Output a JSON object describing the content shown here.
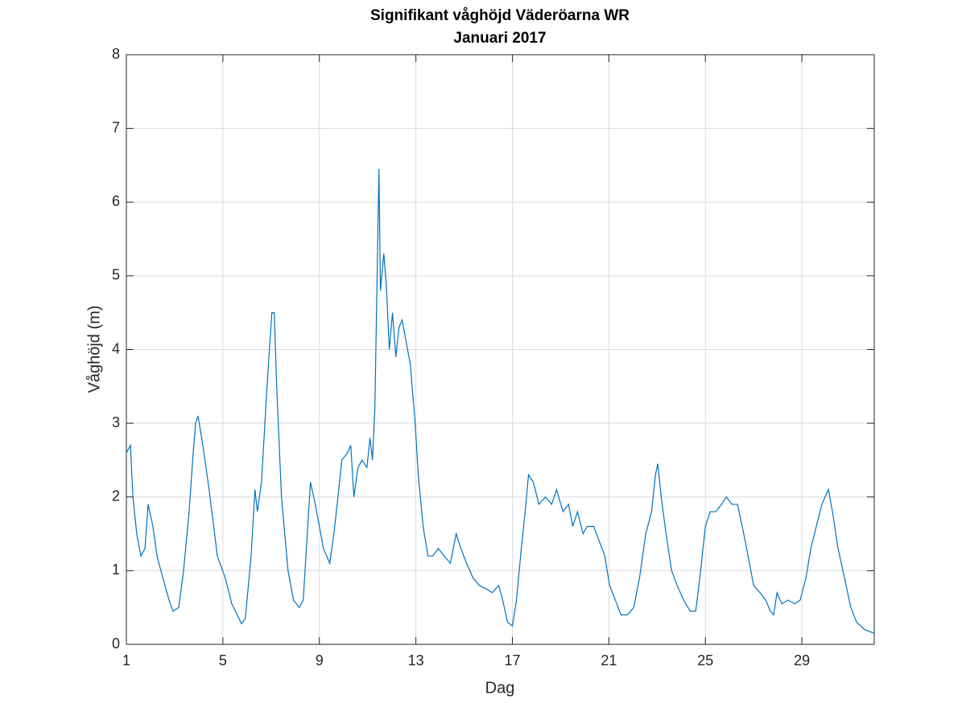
{
  "chart_data": {
    "type": "line",
    "title": "Signifikant våghöjd Väderöarna WR",
    "subtitle": "Januari 2017",
    "x_label": "Dag",
    "y_label": "Våghöjd (m)",
    "xlim": [
      1,
      32
    ],
    "ylim": [
      0,
      8
    ],
    "xticks": [
      1,
      5,
      9,
      13,
      17,
      21,
      25,
      29
    ],
    "yticks": [
      0,
      1,
      2,
      3,
      4,
      5,
      6,
      7,
      8
    ],
    "grid": true,
    "x": [
      1.0,
      1.17,
      1.27,
      1.43,
      1.6,
      1.77,
      1.9,
      2.1,
      2.27,
      2.43,
      2.77,
      2.93,
      3.17,
      3.37,
      3.6,
      3.77,
      3.87,
      3.97,
      4.17,
      4.43,
      4.77,
      5.1,
      5.37,
      5.77,
      5.93,
      6.17,
      6.33,
      6.43,
      6.6,
      6.83,
      7.03,
      7.13,
      7.23,
      7.43,
      7.7,
      7.93,
      8.17,
      8.33,
      8.5,
      8.63,
      8.83,
      9.0,
      9.17,
      9.43,
      9.6,
      9.77,
      9.93,
      10.17,
      10.3,
      10.43,
      10.6,
      10.77,
      10.97,
      11.1,
      11.2,
      11.3,
      11.4,
      11.47,
      11.53,
      11.67,
      11.77,
      11.9,
      12.03,
      12.17,
      12.3,
      12.43,
      12.6,
      12.77,
      12.97,
      13.1,
      13.3,
      13.5,
      13.7,
      13.93,
      14.17,
      14.43,
      14.67,
      14.87,
      15.1,
      15.37,
      15.63,
      15.93,
      16.17,
      16.43,
      16.6,
      16.8,
      17.0,
      17.17,
      17.37,
      17.53,
      17.67,
      17.87,
      18.1,
      18.37,
      18.63,
      18.83,
      19.1,
      19.33,
      19.5,
      19.7,
      19.93,
      20.1,
      20.37,
      20.6,
      20.83,
      21.03,
      21.27,
      21.5,
      21.77,
      22.03,
      22.27,
      22.53,
      22.77,
      22.93,
      23.03,
      23.17,
      23.37,
      23.6,
      23.83,
      24.1,
      24.37,
      24.6,
      24.77,
      25.0,
      25.2,
      25.43,
      25.67,
      25.87,
      26.1,
      26.33,
      26.53,
      26.77,
      27.0,
      27.27,
      27.5,
      27.7,
      27.83,
      27.97,
      28.17,
      28.43,
      28.7,
      28.93,
      29.17,
      29.37,
      29.6,
      29.83,
      30.1,
      30.27,
      30.5,
      30.77,
      31.03,
      31.27,
      31.6,
      32.0
    ],
    "series": [
      {
        "name": "Våghöjd",
        "color": "#0072bd",
        "values": [
          2.6,
          2.7,
          2.0,
          1.5,
          1.2,
          1.3,
          1.9,
          1.6,
          1.2,
          1.0,
          0.6,
          0.45,
          0.5,
          1.0,
          1.8,
          2.6,
          3.0,
          3.1,
          2.7,
          2.1,
          1.2,
          0.9,
          0.55,
          0.28,
          0.35,
          1.2,
          2.1,
          1.8,
          2.2,
          3.5,
          4.5,
          4.5,
          3.5,
          2.0,
          1.0,
          0.6,
          0.5,
          0.6,
          1.5,
          2.2,
          1.9,
          1.6,
          1.3,
          1.1,
          1.5,
          2.0,
          2.5,
          2.6,
          2.7,
          2.0,
          2.4,
          2.5,
          2.4,
          2.8,
          2.5,
          3.2,
          5.1,
          6.45,
          4.8,
          5.3,
          4.9,
          4.0,
          4.5,
          3.9,
          4.3,
          4.4,
          4.1,
          3.8,
          3.0,
          2.3,
          1.6,
          1.2,
          1.2,
          1.3,
          1.2,
          1.1,
          1.5,
          1.3,
          1.1,
          0.9,
          0.8,
          0.75,
          0.7,
          0.8,
          0.6,
          0.3,
          0.25,
          0.6,
          1.3,
          1.8,
          2.3,
          2.2,
          1.9,
          2.0,
          1.9,
          2.1,
          1.8,
          1.9,
          1.6,
          1.8,
          1.5,
          1.6,
          1.6,
          1.4,
          1.2,
          0.8,
          0.6,
          0.4,
          0.4,
          0.5,
          0.9,
          1.5,
          1.8,
          2.3,
          2.45,
          2.0,
          1.5,
          1.0,
          0.8,
          0.6,
          0.45,
          0.45,
          0.9,
          1.6,
          1.8,
          1.8,
          1.9,
          2.0,
          1.9,
          1.9,
          1.6,
          1.2,
          0.8,
          0.7,
          0.6,
          0.45,
          0.4,
          0.7,
          0.55,
          0.6,
          0.55,
          0.6,
          0.9,
          1.3,
          1.6,
          1.9,
          2.1,
          1.8,
          1.3,
          0.9,
          0.5,
          0.3,
          0.2,
          0.15
        ]
      }
    ]
  }
}
